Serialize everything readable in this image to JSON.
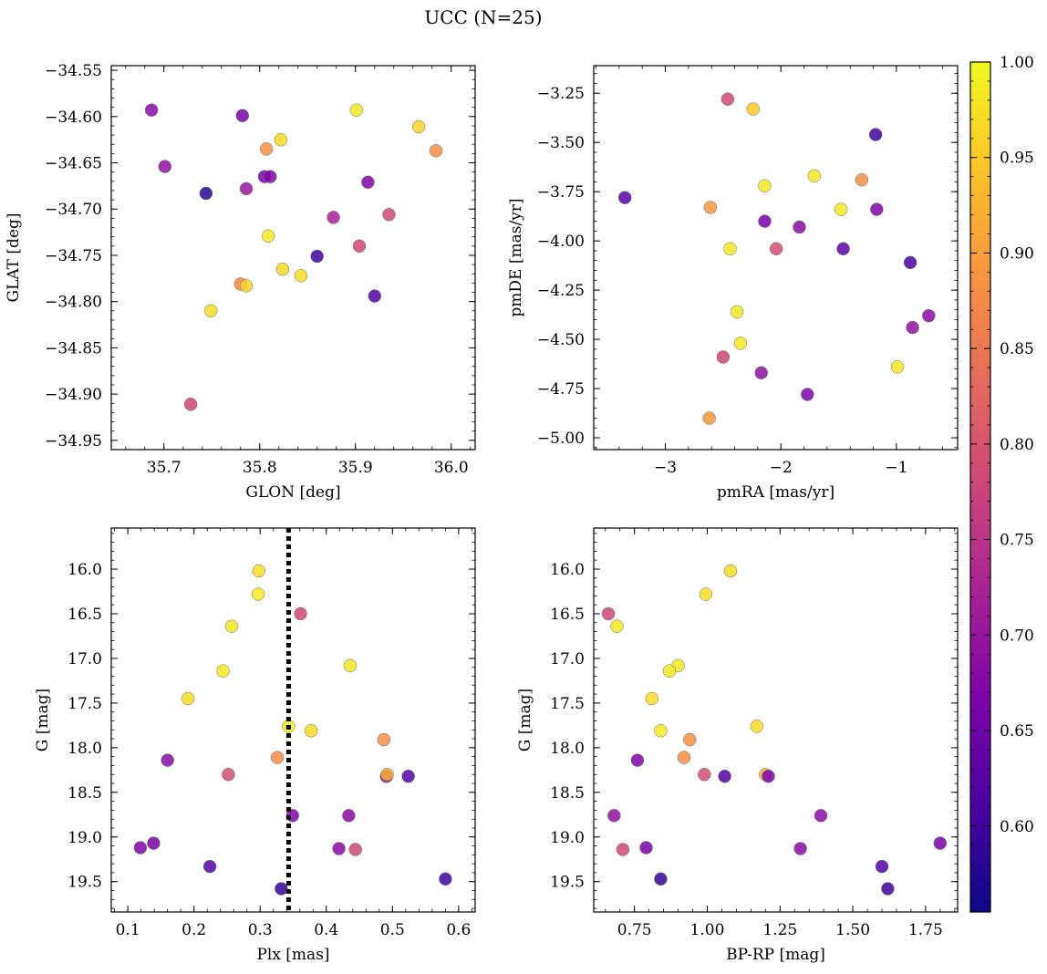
{
  "figure": {
    "title": "UCC (N=25)"
  },
  "colorbar": {
    "min": 0.555,
    "max": 1.0,
    "ticks": [
      0.6,
      0.65,
      0.7,
      0.75,
      0.8,
      0.85,
      0.9,
      0.95,
      1.0
    ],
    "tick_labels": [
      "0.60",
      "0.65",
      "0.70",
      "0.75",
      "0.80",
      "0.85",
      "0.90",
      "0.95",
      "1.00"
    ],
    "colormap": "plasma"
  },
  "chart_data": [
    {
      "type": "scatter",
      "xlabel": "GLON [deg]",
      "ylabel": "GLAT [deg]",
      "xlim": [
        35.645,
        36.025
      ],
      "ylim": [
        -34.96,
        -34.545
      ],
      "y_inverted": false,
      "xticks": [
        35.7,
        35.8,
        35.9,
        36.0
      ],
      "xtick_labels": [
        "35.7",
        "35.8",
        "35.9",
        "36.0"
      ],
      "yticks": [
        -34.55,
        -34.6,
        -34.65,
        -34.7,
        -34.75,
        -34.8,
        -34.85,
        -34.9,
        -34.95
      ],
      "ytick_labels": [
        "−34.55",
        "−34.60",
        "−34.65",
        "−34.70",
        "−34.75",
        "−34.80",
        "−34.85",
        "−34.90",
        "−34.95"
      ],
      "x": [
        35.687,
        35.701,
        35.744,
        35.782,
        35.786,
        35.805,
        35.811,
        35.807,
        35.822,
        35.901,
        35.913,
        35.966,
        35.984,
        35.935,
        35.877,
        35.904,
        35.86,
        35.92,
        35.809,
        35.824,
        35.843,
        35.78,
        35.786,
        35.749,
        35.728
      ],
      "y": [
        -34.593,
        -34.654,
        -34.683,
        -34.599,
        -34.678,
        -34.665,
        -34.665,
        -34.635,
        -34.625,
        -34.593,
        -34.671,
        -34.611,
        -34.637,
        -34.706,
        -34.709,
        -34.74,
        -34.751,
        -34.794,
        -34.729,
        -34.765,
        -34.772,
        -34.781,
        -34.783,
        -34.81,
        -34.911
      ],
      "c": [
        0.68,
        0.69,
        0.58,
        0.66,
        0.7,
        0.66,
        0.67,
        0.88,
        0.97,
        0.98,
        0.67,
        0.96,
        0.88,
        0.78,
        0.72,
        0.78,
        0.6,
        0.62,
        0.98,
        0.97,
        0.97,
        0.87,
        0.96,
        0.97,
        0.78
      ]
    },
    {
      "type": "scatter",
      "xlabel": "pmRA [mas/yr]",
      "ylabel": "pmDE [mas/yr]",
      "xlim": [
        -3.62,
        -0.47
      ],
      "ylim": [
        -5.06,
        -3.11
      ],
      "y_inverted": false,
      "xticks": [
        -3,
        -2,
        -1
      ],
      "xtick_labels": [
        "−3",
        "−2",
        "−1"
      ],
      "yticks": [
        -3.25,
        -3.5,
        -3.75,
        -4.0,
        -4.25,
        -4.5,
        -4.75,
        -5.0
      ],
      "ytick_labels": [
        "−3.25",
        "−3.50",
        "−3.75",
        "−4.00",
        "−4.25",
        "−4.50",
        "−4.75",
        "−5.00"
      ],
      "x": [
        -2.46,
        -2.24,
        -1.18,
        -3.35,
        -2.14,
        -1.71,
        -1.3,
        -2.61,
        -1.48,
        -1.17,
        -2.14,
        -1.84,
        -2.44,
        -2.04,
        -1.46,
        -0.88,
        -2.38,
        -0.72,
        -0.86,
        -2.35,
        -2.5,
        -0.99,
        -2.17,
        -1.77,
        -2.62
      ],
      "y": [
        -3.28,
        -3.33,
        -3.46,
        -3.78,
        -3.72,
        -3.67,
        -3.69,
        -3.83,
        -3.84,
        -3.84,
        -3.9,
        -3.93,
        -4.04,
        -4.04,
        -4.04,
        -4.11,
        -4.36,
        -4.38,
        -4.44,
        -4.52,
        -4.59,
        -4.64,
        -4.67,
        -4.78,
        -4.9
      ],
      "c": [
        0.78,
        0.95,
        0.6,
        0.62,
        0.98,
        0.98,
        0.88,
        0.89,
        0.98,
        0.67,
        0.66,
        0.68,
        0.98,
        0.79,
        0.63,
        0.61,
        0.98,
        0.68,
        0.69,
        0.98,
        0.78,
        0.98,
        0.69,
        0.67,
        0.89
      ]
    },
    {
      "type": "scatter",
      "xlabel": "Plx [mas]",
      "ylabel": "G [mag]",
      "xlim": [
        0.075,
        0.625
      ],
      "ylim": [
        19.84,
        15.54
      ],
      "y_inverted": true,
      "xticks": [
        0.1,
        0.2,
        0.3,
        0.4,
        0.5,
        0.6
      ],
      "xtick_labels": [
        "0.1",
        "0.2",
        "0.3",
        "0.4",
        "0.5",
        "0.6"
      ],
      "yticks": [
        16.0,
        16.5,
        17.0,
        17.5,
        18.0,
        18.5,
        19.0,
        19.5
      ],
      "ytick_labels": [
        "16.0",
        "16.5",
        "17.0",
        "17.5",
        "18.0",
        "18.5",
        "19.0",
        "19.5"
      ],
      "vline": {
        "x": 0.343,
        "style": "dotted",
        "color": "#000000"
      },
      "x": [
        0.298,
        0.297,
        0.361,
        0.257,
        0.436,
        0.244,
        0.191,
        0.343,
        0.377,
        0.487,
        0.326,
        0.16,
        0.252,
        0.491,
        0.524,
        0.492,
        0.349,
        0.434,
        0.119,
        0.139,
        0.419,
        0.444,
        0.224,
        0.332,
        0.58
      ],
      "y": [
        16.02,
        16.28,
        16.5,
        16.64,
        17.08,
        17.14,
        17.45,
        17.76,
        17.81,
        17.91,
        18.11,
        18.14,
        18.3,
        18.32,
        18.32,
        18.3,
        18.76,
        18.76,
        19.12,
        19.07,
        19.13,
        19.14,
        19.33,
        19.58,
        19.47
      ],
      "c": [
        0.97,
        0.98,
        0.78,
        0.98,
        0.98,
        0.98,
        0.97,
        0.99,
        0.97,
        0.88,
        0.88,
        0.68,
        0.79,
        0.66,
        0.62,
        0.92,
        0.67,
        0.68,
        0.67,
        0.66,
        0.68,
        0.78,
        0.62,
        0.59,
        0.6
      ]
    },
    {
      "type": "scatter",
      "xlabel": "BP-RP [mag]",
      "ylabel": "G [mag]",
      "xlim": [
        0.61,
        1.86
      ],
      "ylim": [
        19.84,
        15.54
      ],
      "y_inverted": true,
      "xticks": [
        0.75,
        1.0,
        1.25,
        1.5,
        1.75
      ],
      "xtick_labels": [
        "0.75",
        "1.00",
        "1.25",
        "1.50",
        "1.75"
      ],
      "yticks": [
        16.0,
        16.5,
        17.0,
        17.5,
        18.0,
        18.5,
        19.0,
        19.5
      ],
      "ytick_labels": [
        "16.0",
        "16.5",
        "17.0",
        "17.5",
        "18.0",
        "18.5",
        "19.0",
        "19.5"
      ],
      "x": [
        1.08,
        0.66,
        0.69,
        0.995,
        0.9,
        0.87,
        0.81,
        1.17,
        0.84,
        0.94,
        0.92,
        0.76,
        0.99,
        1.06,
        1.2,
        1.21,
        0.68,
        1.39,
        0.71,
        0.79,
        1.32,
        1.8,
        1.6,
        1.62,
        0.84
      ],
      "y": [
        16.02,
        16.5,
        16.64,
        16.28,
        17.08,
        17.14,
        17.45,
        17.76,
        17.81,
        17.91,
        18.11,
        18.14,
        18.3,
        18.32,
        18.3,
        18.32,
        18.76,
        18.76,
        19.14,
        19.12,
        19.13,
        19.07,
        19.33,
        19.58,
        19.47
      ],
      "c": [
        0.97,
        0.78,
        0.98,
        0.97,
        0.98,
        0.98,
        0.97,
        0.97,
        0.98,
        0.88,
        0.88,
        0.67,
        0.79,
        0.62,
        0.92,
        0.66,
        0.69,
        0.68,
        0.78,
        0.66,
        0.68,
        0.66,
        0.62,
        0.6,
        0.59
      ]
    }
  ]
}
